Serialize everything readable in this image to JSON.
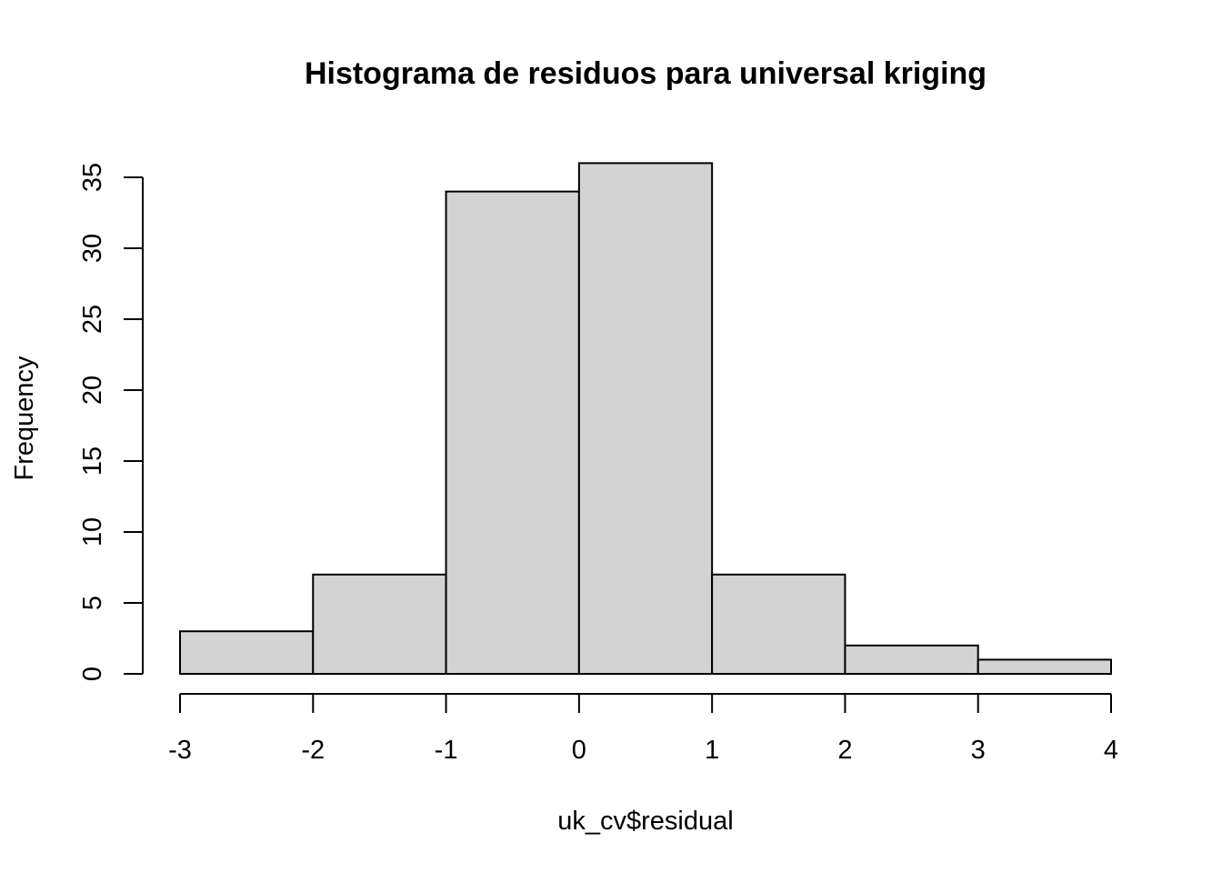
{
  "chart_data": {
    "type": "bar",
    "title": "Histograma de residuos para universal kriging",
    "xlabel": "uk_cv$residual",
    "ylabel": "Frequency",
    "bins": [
      {
        "from": -3,
        "to": -2,
        "count": 3
      },
      {
        "from": -2,
        "to": -1,
        "count": 7
      },
      {
        "from": -1,
        "to": 0,
        "count": 34
      },
      {
        "from": 0,
        "to": 1,
        "count": 36
      },
      {
        "from": 1,
        "to": 2,
        "count": 7
      },
      {
        "from": 2,
        "to": 3,
        "count": 2
      },
      {
        "from": 3,
        "to": 4,
        "count": 1
      }
    ],
    "xlim": [
      -3,
      4
    ],
    "ylim": [
      0,
      35
    ],
    "x_ticks": [
      -3,
      -2,
      -1,
      0,
      1,
      2,
      3,
      4
    ],
    "x_tick_labels": [
      "-3",
      "-2",
      "-1",
      "0",
      "1",
      "2",
      "3",
      "4"
    ],
    "y_ticks": [
      0,
      5,
      10,
      15,
      20,
      25,
      30,
      35
    ],
    "y_tick_labels": [
      "0",
      "5",
      "10",
      "15",
      "20",
      "25",
      "30",
      "35"
    ],
    "colors": {
      "bar_fill": "#d3d3d3",
      "bar_stroke": "#000000"
    },
    "grid": false,
    "legend": "none"
  }
}
